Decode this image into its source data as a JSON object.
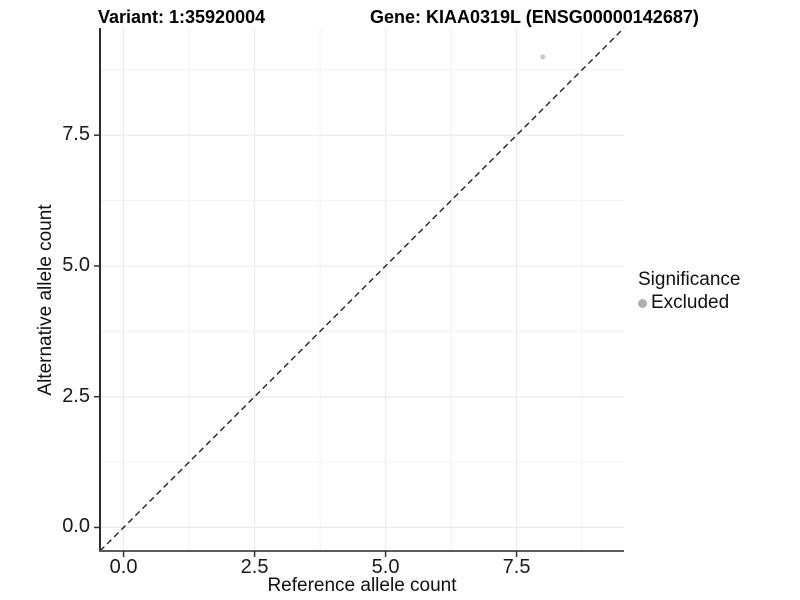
{
  "titles": {
    "variant": "Variant: 1:35920004",
    "gene": "Gene: KIAA0319L (ENSG00000142687)"
  },
  "chart_data": {
    "type": "scatter",
    "title": "Variant: 1:35920004 — Gene: KIAA0319L (ENSG00000142687)",
    "xlabel": "Reference allele count",
    "ylabel": "Alternative allele count",
    "xlim": [
      -0.45,
      9.55
    ],
    "ylim": [
      -0.45,
      9.55
    ],
    "x_major_ticks": [
      0.0,
      2.5,
      5.0,
      7.5
    ],
    "y_major_ticks": [
      0.0,
      2.5,
      5.0,
      7.5
    ],
    "x_tick_labels": [
      "0.0",
      "2.5",
      "5.0",
      "7.5"
    ],
    "y_tick_labels": [
      "0.0",
      "2.5",
      "5.0",
      "7.5"
    ],
    "x_minor_ticks": [
      1.25,
      3.75,
      6.25,
      8.75
    ],
    "y_minor_ticks": [
      1.25,
      3.75,
      6.25,
      8.75
    ],
    "grid": true,
    "series": [
      {
        "name": "Excluded",
        "color": "#c9c9c9",
        "point_radius": 2.6,
        "points": [
          {
            "x": 8,
            "y": 9
          }
        ]
      }
    ],
    "reference_line": {
      "kind": "identity",
      "equation": "y = x",
      "style": "dashed",
      "color": "#222222"
    },
    "legend": {
      "title": "Significance",
      "position": "right",
      "entries": [
        {
          "label": "Excluded",
          "color": "#b0b0b0"
        }
      ]
    },
    "style": {
      "background": "#ffffff",
      "grid_major_color": "#e9e9e9",
      "grid_minor_color": "#f1f1f1",
      "y_axis_line_color": "#2b2b2b",
      "x_axis_line_color": "#5a5a5a",
      "tick_mark_color": "#333333"
    }
  }
}
